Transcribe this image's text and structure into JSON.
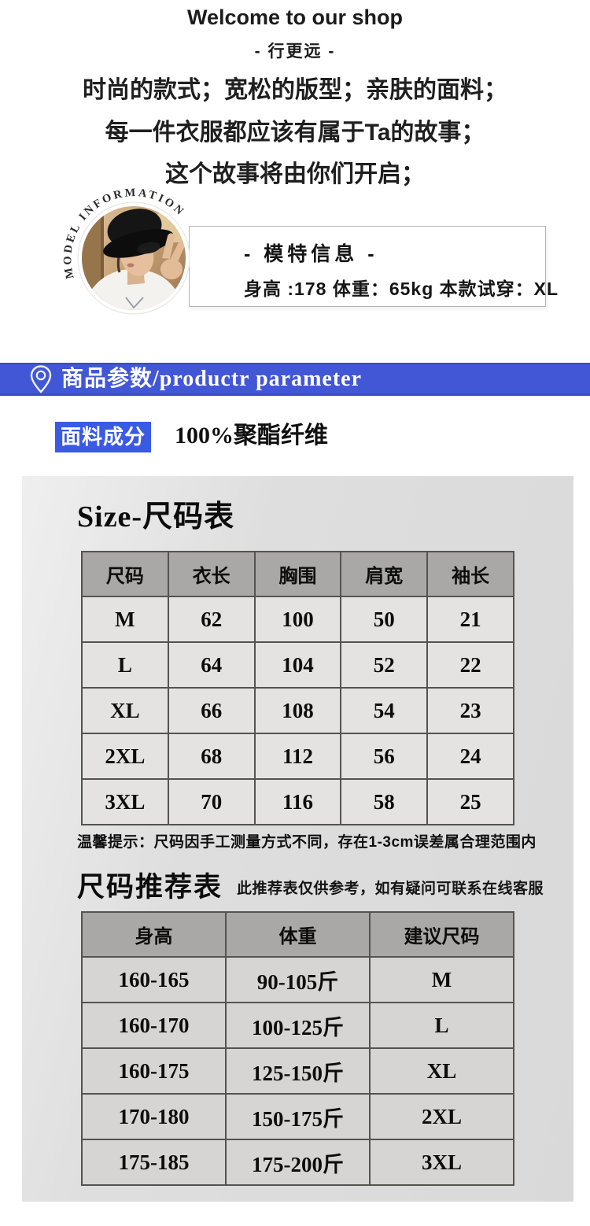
{
  "colors": {
    "banner_blue": "#4257d5",
    "fabric_label_blue": "#3a5ae4",
    "table_header_gray": "#a9a8a6",
    "panel_gray": "#dcdcdc"
  },
  "header": {
    "welcome": "Welcome to our shop",
    "slogan": "- 行更远 -",
    "taglines": [
      "时尚的款式；宽松的版型；亲肤的面料；",
      "每一件衣服都应该有属于Ta的故事；",
      "这个故事将由你们开启；"
    ]
  },
  "model": {
    "curved_label": "MODEL INFORMATION",
    "title": "- 模特信息 -",
    "stats": "身高 :178  体重：65kg  本款试穿：XL"
  },
  "params_banner": {
    "title": "商品参数/productr parameter"
  },
  "fabric": {
    "label": "面料成分",
    "value": "100%聚酯纤维"
  },
  "size_section": {
    "title": "Size-尺码表",
    "table": {
      "headers": [
        "尺码",
        "衣长",
        "胸围",
        "肩宽",
        "袖长"
      ],
      "rows": [
        [
          "M",
          "62",
          "100",
          "50",
          "21"
        ],
        [
          "L",
          "64",
          "104",
          "52",
          "22"
        ],
        [
          "XL",
          "66",
          "108",
          "54",
          "23"
        ],
        [
          "2XL",
          "68",
          "112",
          "56",
          "24"
        ],
        [
          "3XL",
          "70",
          "116",
          "58",
          "25"
        ]
      ]
    },
    "note": "温馨提示：尺码因手工测量方式不同，存在1-3cm误差属合理范围内"
  },
  "recommend_section": {
    "title": "尺码推荐表",
    "subtitle": "此推荐表仅供参考，如有疑问可联系在线客服",
    "table": {
      "headers": [
        "身高",
        "体重",
        "建议尺码"
      ],
      "rows": [
        [
          "160-165",
          "90-105斤",
          "M"
        ],
        [
          "160-170",
          "100-125斤",
          "L"
        ],
        [
          "160-175",
          "125-150斤",
          "XL"
        ],
        [
          "170-180",
          "150-175斤",
          "2XL"
        ],
        [
          "175-185",
          "175-200斤",
          "3XL"
        ]
      ]
    }
  }
}
